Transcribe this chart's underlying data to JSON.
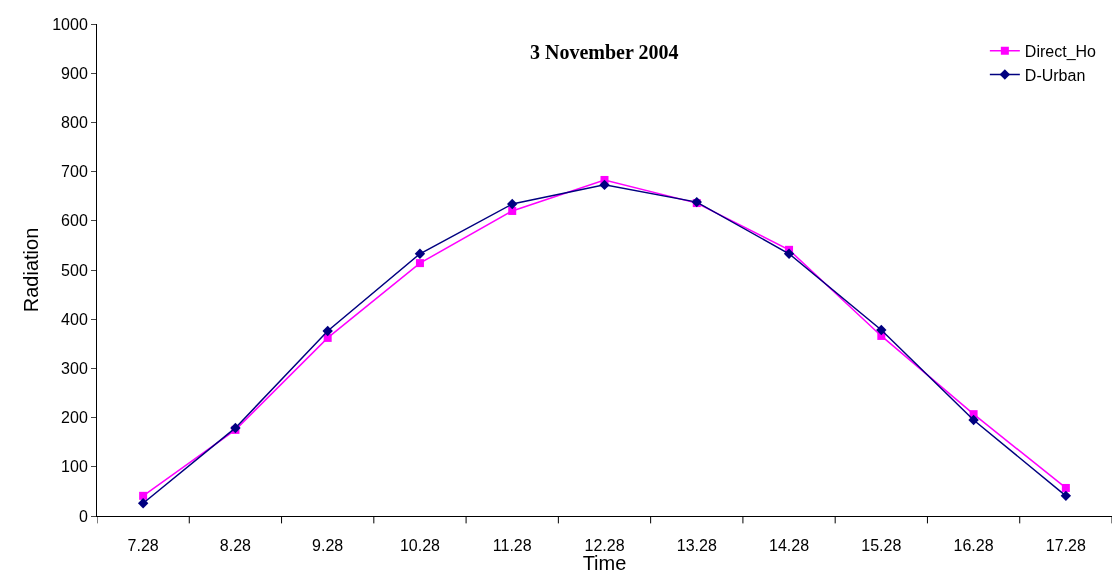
{
  "chart_data": {
    "type": "line",
    "title": "3 November 2004",
    "xlabel": "Time",
    "ylabel": "Radiation",
    "categories": [
      "7.28",
      "8.28",
      "9.28",
      "10.28",
      "11.28",
      "12.28",
      "13.28",
      "14.28",
      "15.28",
      "16.28",
      "17.28"
    ],
    "series": [
      {
        "name": "Direct_Ho",
        "color": "#ff00ff",
        "marker": "square",
        "values": [
          41,
          175,
          362,
          514,
          620,
          683,
          636,
          541,
          366,
          207,
          57
        ]
      },
      {
        "name": "D-Urban",
        "color": "#000080",
        "marker": "diamond",
        "values": [
          26,
          179,
          376,
          533,
          634,
          673,
          638,
          533,
          378,
          195,
          41
        ]
      }
    ],
    "ylim": [
      0,
      1000
    ],
    "yticks": [
      0,
      100,
      200,
      300,
      400,
      500,
      600,
      700,
      800,
      900,
      1000
    ],
    "legend": "top right",
    "line_style": "solid"
  }
}
